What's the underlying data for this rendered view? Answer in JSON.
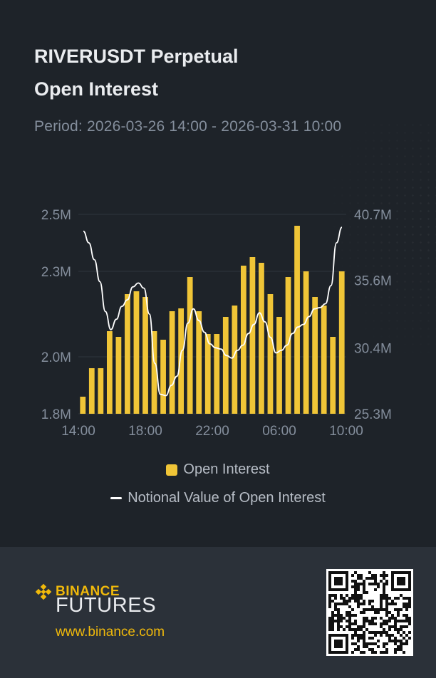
{
  "header": {
    "title_line1": "RIVERUSDT Perpetual",
    "title_line2": "Open Interest",
    "period": "Period: 2026-03-26 14:00 - 2026-03-31 10:00"
  },
  "legend": {
    "open_interest": "Open Interest",
    "notional": "Notional Value of Open Interest"
  },
  "colors": {
    "bar": "#f0c537",
    "line": "#ffffff",
    "grid": "#2e353d",
    "axis_text": "#848e9c",
    "accent": "#f0b90b"
  },
  "footer": {
    "brand": "BINANCE",
    "product": "FUTURES",
    "website": "www.binance.com",
    "logo_icon": "binance-diamond-icon",
    "qr_icon": "qr-code-icon"
  },
  "chart_data": {
    "type": "bar",
    "grid": true,
    "legend_position": "bottom",
    "left_axis": {
      "ticks": [
        "1.8M",
        "2.0M",
        "2.3M",
        "2.5M"
      ],
      "tick_values": [
        1.8,
        2.0,
        2.3,
        2.5
      ],
      "ylim": [
        1.8,
        2.5
      ]
    },
    "right_axis": {
      "ticks": [
        "25.3M",
        "30.4M",
        "35.6M",
        "40.7M"
      ],
      "tick_values": [
        25.3,
        30.4,
        35.6,
        40.7
      ],
      "ylim": [
        25.3,
        40.7
      ]
    },
    "x_tick_labels": [
      "14:00",
      "18:00",
      "22:00",
      "06:00",
      "10:00"
    ],
    "series": [
      {
        "name": "Open Interest",
        "kind": "bar",
        "axis": "left",
        "values": [
          1.86,
          1.96,
          1.96,
          2.09,
          2.07,
          2.22,
          2.23,
          2.21,
          2.09,
          2.06,
          2.16,
          2.17,
          2.28,
          2.16,
          2.08,
          2.08,
          2.14,
          2.18,
          2.32,
          2.35,
          2.33,
          2.22,
          2.14,
          2.28,
          2.46,
          2.3,
          2.21,
          2.18,
          2.07,
          2.3
        ]
      },
      {
        "name": "Notional Value of Open Interest",
        "kind": "line",
        "axis": "right",
        "values": [
          39.4,
          38.5,
          37.2,
          35.5,
          33.2,
          31.8,
          32.6,
          33.6,
          34.1,
          35.1,
          35.4,
          35.0,
          33.0,
          29.2,
          26.8,
          26.7,
          27.5,
          28.2,
          30.2,
          32.3,
          33.4,
          32.5,
          31.6,
          30.7,
          30.4,
          30.3,
          29.8,
          29.6,
          30.2,
          30.6,
          31.5,
          32.2,
          33.1,
          32.4,
          31.2,
          30.0,
          30.2,
          30.6,
          31.5,
          32.0,
          32.2,
          32.8,
          33.4,
          33.5,
          33.8,
          35.2,
          38.5,
          39.7
        ]
      }
    ]
  }
}
